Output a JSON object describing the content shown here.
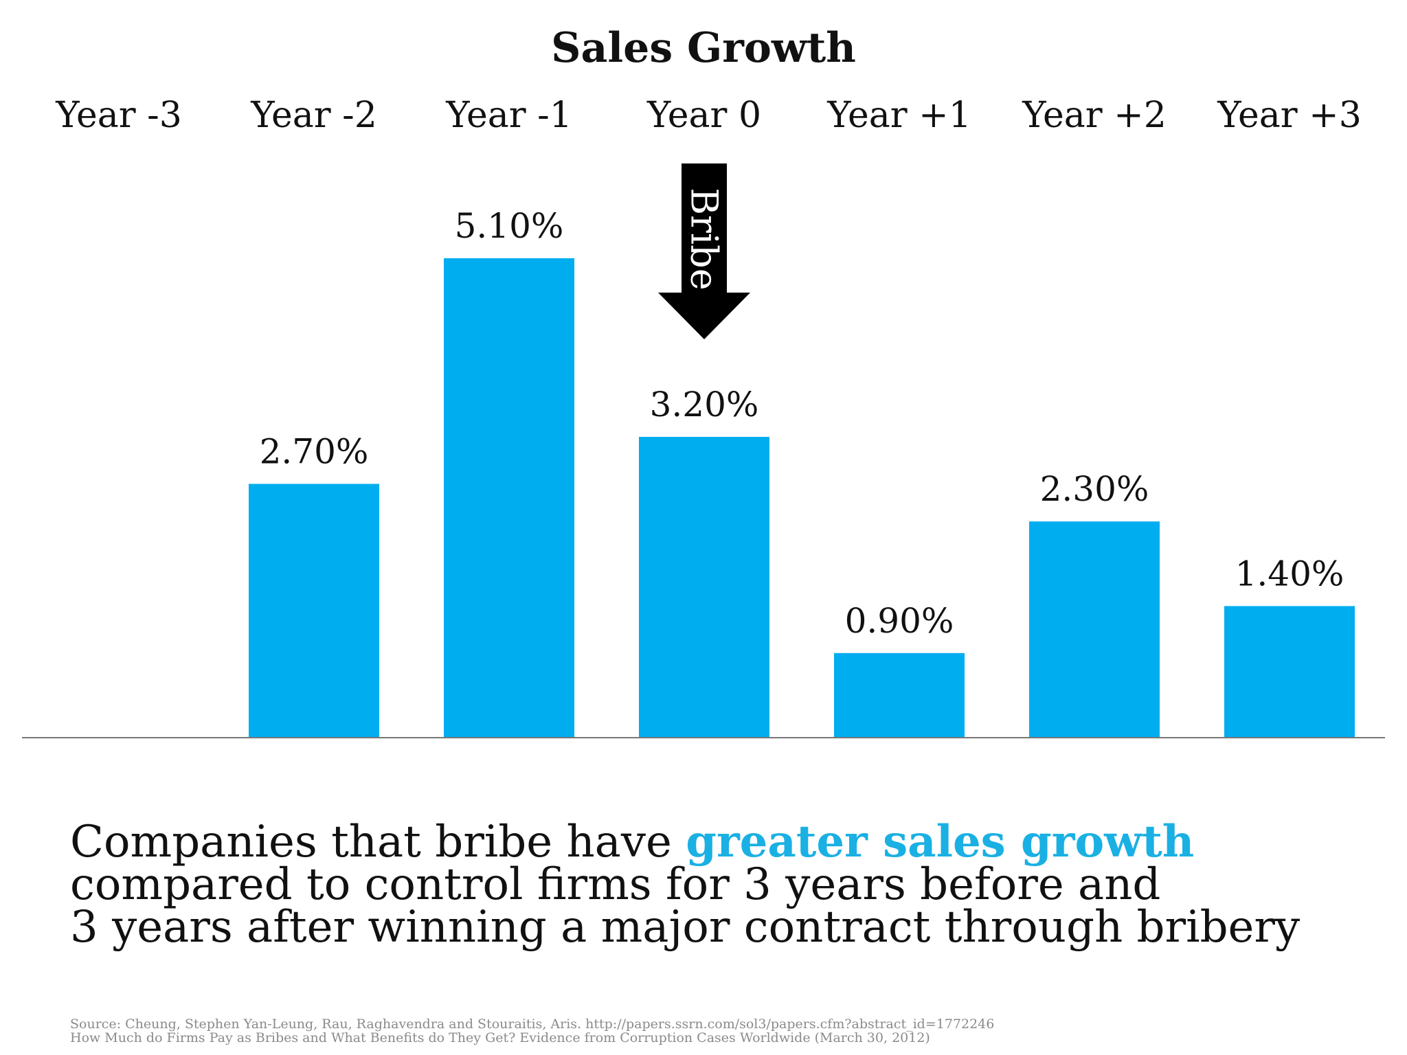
{
  "chart_data": {
    "type": "bar",
    "title": "Sales Growth",
    "categories": [
      "Year -3",
      "Year -2",
      "Year -1",
      "Year 0",
      "Year +1",
      "Year +2",
      "Year +3"
    ],
    "values": [
      null,
      2.7,
      5.1,
      3.2,
      0.9,
      2.3,
      1.4
    ],
    "value_labels": [
      "",
      "2.70%",
      "5.10%",
      "3.20%",
      "0.90%",
      "2.30%",
      "1.40%"
    ],
    "ylim": [
      0,
      5.1
    ],
    "bar_color": "#00adef",
    "category_axis_position": "top",
    "grid": false,
    "annotation": {
      "text": "Bribe",
      "category": "Year 0",
      "shape": "down-arrow",
      "color": "#000000"
    }
  },
  "caption": {
    "line1_prefix": "Companies that bribe have ",
    "line1_highlight": "greater sales growth",
    "line2": "compared to control firms for 3 years before and",
    "line3": "3 years after winning a major contract through bribery",
    "highlight_color": "#1ab0e3"
  },
  "source": {
    "line1": "Source: Cheung, Stephen Yan-Leung, Rau, Raghavendra and Stouraitis, Aris. http://papers.ssrn.com/sol3/papers.cfm?abstract_id=1772246",
    "line2": "How Much do Firms Pay as Bribes and What Benefits do They Get? Evidence from Corruption Cases Worldwide (March 30, 2012)"
  }
}
